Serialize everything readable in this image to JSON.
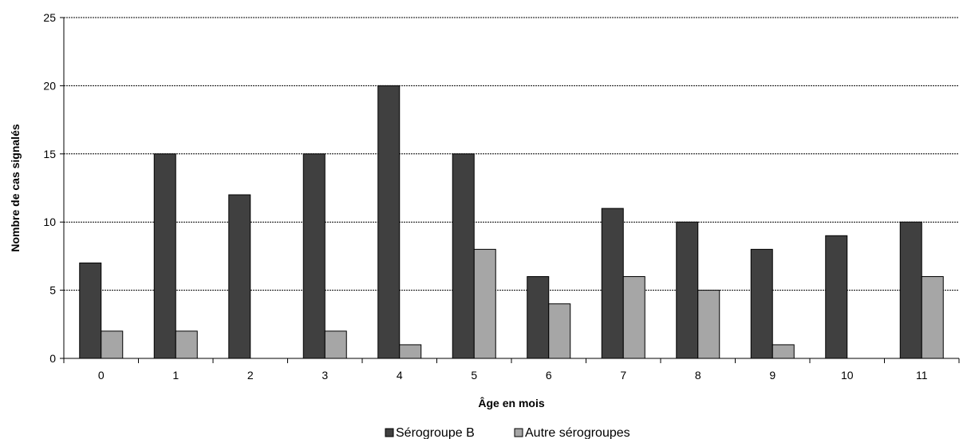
{
  "chart_data": {
    "type": "bar",
    "title": "",
    "xlabel": "Âge en mois",
    "ylabel": "Nombre de cas signalés",
    "ylim": [
      0,
      25
    ],
    "yticks": [
      0,
      5,
      10,
      15,
      20,
      25
    ],
    "categories": [
      "0",
      "1",
      "2",
      "3",
      "4",
      "5",
      "6",
      "7",
      "8",
      "9",
      "10",
      "11"
    ],
    "series": [
      {
        "name": "Sérogroupe B",
        "values": [
          7,
          15,
          12,
          15,
          20,
          15,
          6,
          11,
          10,
          8,
          9,
          10
        ],
        "color": "#404040"
      },
      {
        "name": "Autre sérogroupes",
        "values": [
          2,
          2,
          0,
          2,
          1,
          8,
          4,
          6,
          5,
          1,
          0,
          6
        ],
        "color": "#a6a6a6"
      }
    ],
    "grid": true,
    "legend": "bottom"
  }
}
